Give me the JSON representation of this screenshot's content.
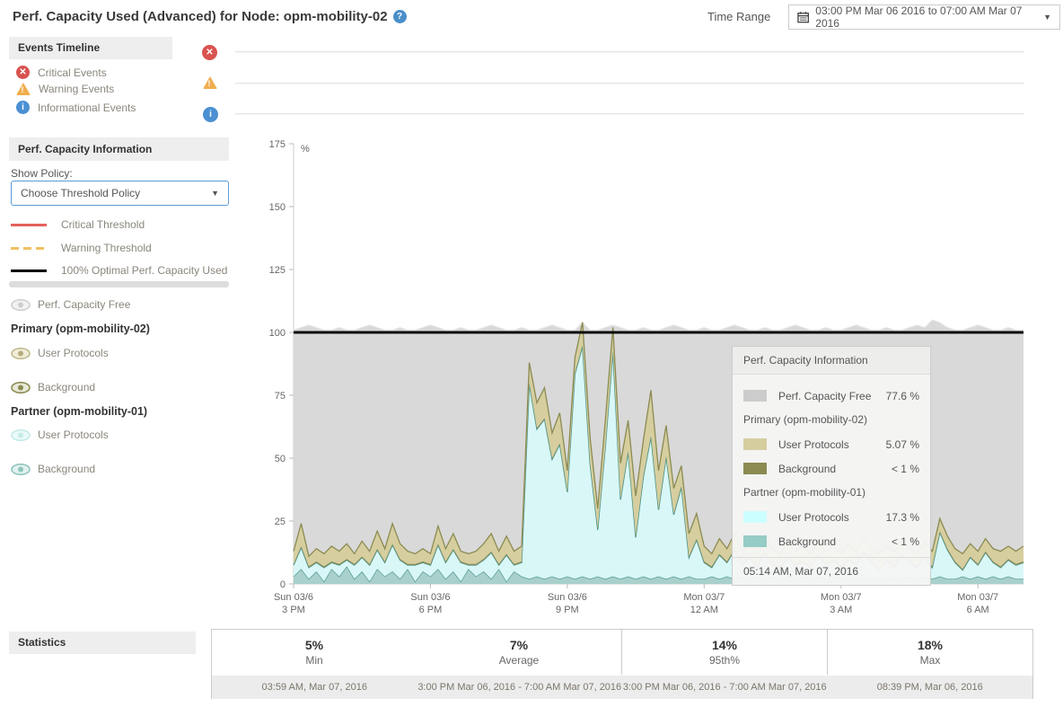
{
  "header": {
    "title": "Perf. Capacity Used (Advanced) for Node: opm-mobility-02",
    "help": "?",
    "time_range_label": "Time Range",
    "time_range_value": "03:00 PM Mar 06 2016 to 07:00 AM Mar 07 2016",
    "caret": "▼"
  },
  "events_panel": {
    "title": "Events Timeline",
    "items": [
      {
        "icon": "critical-icon",
        "label": "Critical Events"
      },
      {
        "icon": "warning-icon",
        "label": "Warning Events"
      },
      {
        "icon": "info-icon",
        "label": "Informational Events"
      }
    ]
  },
  "capacity_panel": {
    "title": "Perf. Capacity Information",
    "show_policy_label": "Show Policy:",
    "policy_value": "Choose Threshold Policy",
    "thresholds": [
      {
        "label": "Critical Threshold"
      },
      {
        "label": "Warning Threshold"
      },
      {
        "label": "100% Optimal Perf. Capacity Used"
      }
    ],
    "free_label": "Perf. Capacity Free",
    "primary_group": "Primary (opm-mobility-02)",
    "primary_user": "User Protocols",
    "primary_background": "Background",
    "partner_group": "Partner (opm-mobility-01)",
    "partner_user": "User Protocols",
    "partner_background": "Background"
  },
  "tooltip": {
    "title": "Perf. Capacity Information",
    "free": {
      "label": "Perf. Capacity Free",
      "value": "77.6 %",
      "color": "#cccccc"
    },
    "primary_group": "Primary (opm-mobility-02)",
    "primary_user": {
      "label": "User Protocols",
      "value": "5.07 %",
      "color": "#d5cd9e"
    },
    "primary_background": {
      "label": "Background",
      "value": "< 1 %",
      "color": "#8b8b52"
    },
    "partner_group": "Partner (opm-mobility-01)",
    "partner_user": {
      "label": "User Protocols",
      "value": "17.3 %",
      "color": "#ccffff"
    },
    "partner_background": {
      "label": "Background",
      "value": "< 1 %",
      "color": "#96ccc6"
    },
    "time": "05:14 AM, Mar 07, 2016"
  },
  "statistics": {
    "title": "Statistics",
    "columns": [
      {
        "value": "5%",
        "label": "Min",
        "timestamp": "03:59 AM, Mar 07, 2016"
      },
      {
        "value": "7%",
        "label": "Average",
        "timestamp": "3:00 PM Mar 06, 2016 - 7:00 AM Mar 07, 2016"
      },
      {
        "value": "14%",
        "label": "95th%",
        "timestamp": "3:00 PM Mar 06, 2016 - 7:00 AM Mar 07, 2016"
      },
      {
        "value": "18%",
        "label": "Max",
        "timestamp": "08:39 PM, Mar 06, 2016"
      }
    ]
  },
  "chart_data": {
    "type": "area",
    "stacked": true,
    "unit": "%",
    "ylim": [
      0,
      175
    ],
    "y_ticks": [
      0,
      25,
      50,
      75,
      100,
      125,
      150,
      175
    ],
    "x_span_minutes": 960,
    "x_start": "03:00 PM Mar 06 2016",
    "x_ticks": [
      {
        "minute": 0,
        "line1": "Sun 03/6",
        "line2": "3 PM"
      },
      {
        "minute": 180,
        "line1": "Sun 03/6",
        "line2": "6 PM"
      },
      {
        "minute": 360,
        "line1": "Sun 03/6",
        "line2": "9 PM"
      },
      {
        "minute": 540,
        "line1": "Mon 03/7",
        "line2": "12 AM"
      },
      {
        "minute": 720,
        "line1": "Mon 03/7",
        "line2": "3 AM"
      },
      {
        "minute": 900,
        "line1": "Mon 03/7",
        "line2": "6 AM"
      }
    ],
    "sample_interval_minutes": 10,
    "optimal_line": 100,
    "free_color": "#d9d9d9",
    "free_edge_color": "#ececec",
    "free_bump_pattern": [
      1,
      2,
      3,
      2,
      1,
      1,
      2,
      1
    ],
    "free_bump_overrides": {
      "84": 5,
      "85": 4
    },
    "series": [
      {
        "name": "Partner Background",
        "color": "#a9d0ca",
        "stroke": "#4a948c",
        "values": [
          3,
          6,
          2,
          5,
          1,
          6,
          3,
          7,
          2,
          5,
          1,
          6,
          3,
          5,
          2,
          6,
          1,
          5,
          3,
          6,
          2,
          5,
          1,
          6,
          3,
          5,
          2,
          6,
          1,
          5,
          3,
          2,
          3,
          2,
          3,
          2,
          3,
          2,
          3,
          2,
          3,
          2,
          3,
          2,
          3,
          2,
          3,
          2,
          3,
          2,
          3,
          2,
          3,
          2,
          2,
          3,
          2,
          3,
          2,
          3,
          2,
          3,
          2,
          3,
          2,
          3,
          2,
          3,
          2,
          3,
          2,
          3,
          2,
          3,
          2,
          3,
          2,
          3,
          2,
          3,
          2,
          3,
          2,
          3,
          2,
          3,
          2,
          2,
          3,
          2,
          3,
          2,
          3,
          2,
          3,
          2,
          2
        ]
      },
      {
        "name": "Partner User Protocols",
        "color": "#d9f7f7",
        "stroke": "#4a948c",
        "values": [
          4.5,
          8.5,
          4.5,
          3.5,
          5.5,
          2.5,
          4.5,
          2.5,
          5.5,
          5.5,
          6.5,
          7.5,
          5.5,
          10.5,
          7.5,
          1.5,
          6.5,
          3.5,
          4.5,
          9.5,
          6.5,
          8.5,
          7.5,
          1.5,
          4.5,
          4.5,
          10.5,
          1.5,
          10.5,
          2.5,
          5.5,
          77.5,
          58.5,
          63.5,
          46.5,
          53.5,
          33.5,
          81.5,
          91.5,
          45.5,
          18.5,
          52.5,
          89.5,
          31.5,
          49.5,
          16.5,
          39.5,
          56.5,
          26.5,
          48.5,
          24.5,
          36.5,
          7.5,
          15.5,
          6.5,
          3.5,
          9.5,
          5.5,
          11.5,
          4.5,
          8.5,
          3.5,
          10.5,
          4.5,
          4.5,
          7.5,
          5.5,
          5.5,
          4.5,
          8.5,
          5.5,
          6.5,
          4.5,
          6.5,
          5.5,
          9.5,
          6.5,
          2.5,
          7.5,
          3.5,
          9.5,
          5.5,
          4.5,
          7.5,
          4.5,
          17.5,
          11.5,
          6.5,
          2.5,
          8.5,
          4.5,
          10.5,
          5.5,
          4.5,
          6.5,
          5.5,
          6.5
        ]
      },
      {
        "name": "Primary Background",
        "color": "#8b8b52",
        "stroke": null,
        "constant": 0.5
      },
      {
        "name": "Primary User Protocols",
        "color": "#d6ce9f",
        "stroke": "#8b8b52",
        "values": [
          5,
          9,
          4,
          5,
          5,
          6,
          5,
          6,
          4,
          6,
          5,
          7,
          5,
          8,
          6,
          5,
          4,
          5,
          4,
          7,
          5,
          6,
          4,
          4,
          5,
          6,
          7,
          5,
          7,
          5,
          6,
          8,
          10,
          12,
          10,
          12,
          8,
          6,
          9,
          10,
          8,
          10,
          9,
          14,
          12,
          16,
          14,
          18,
          15,
          12,
          10,
          8,
          9,
          10,
          6,
          5,
          6,
          5,
          6,
          5,
          5,
          5,
          5,
          6,
          5,
          5,
          5,
          6,
          5,
          5,
          5,
          5,
          5,
          6,
          5,
          5,
          5,
          6,
          5,
          6,
          5,
          5,
          5,
          5,
          6,
          5,
          5,
          5,
          6,
          5,
          5,
          5,
          5,
          6,
          5,
          5,
          6
        ]
      }
    ]
  }
}
